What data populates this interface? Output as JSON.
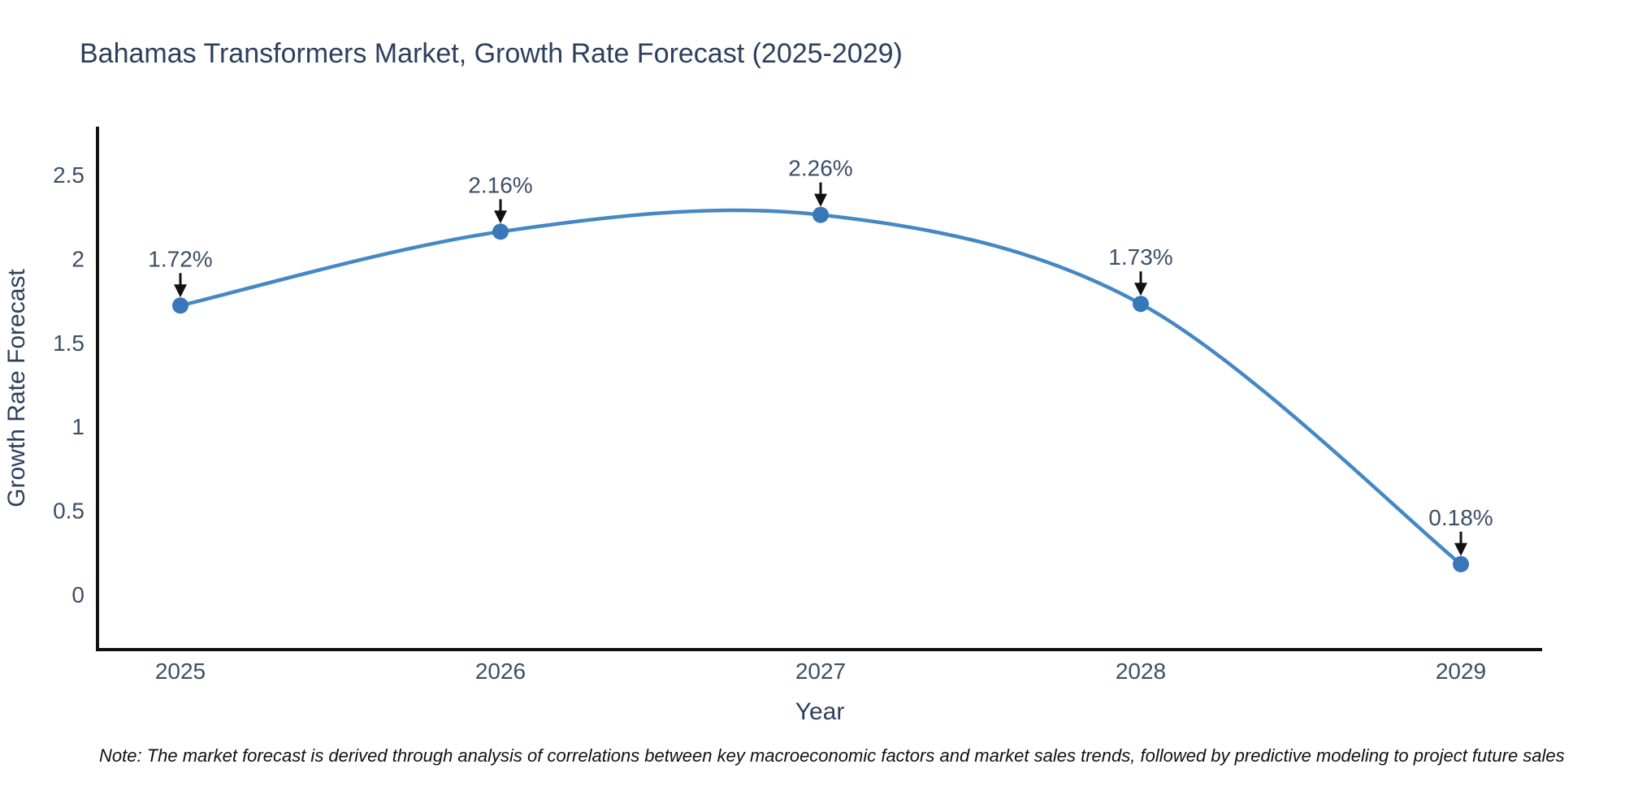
{
  "title": "Bahamas Transformers Market, Growth Rate Forecast (2025-2029)",
  "note": "Note: The market forecast is derived through analysis of correlations between key macroeconomic factors and market sales trends, followed by predictive modeling to project future sales",
  "chart_data": {
    "type": "line",
    "line_shape": "spline",
    "title": "Bahamas Transformers Market, Growth Rate Forecast (2025-2029)",
    "xlabel": "Year",
    "ylabel": "Growth Rate Forecast",
    "categories": [
      "2025",
      "2026",
      "2027",
      "2028",
      "2029"
    ],
    "values": [
      1.72,
      2.16,
      2.26,
      1.73,
      0.18
    ],
    "point_labels": [
      "1.72%",
      "2.16%",
      "2.26%",
      "1.73%",
      "0.18%"
    ],
    "yticks": [
      {
        "label": "0",
        "value": 0
      },
      {
        "label": "0.5",
        "value": 0.5
      },
      {
        "label": "1",
        "value": 1
      },
      {
        "label": "1.5",
        "value": 1.5
      },
      {
        "label": "2",
        "value": 2
      },
      {
        "label": "2.5",
        "value": 2.5
      }
    ],
    "ylim": [
      -0.33,
      2.79
    ],
    "grid": false,
    "legend": false,
    "colors": {
      "line": "#4688c4",
      "marker": "#3878ba",
      "axis": "#111111",
      "arrow": "#111111",
      "tick_text": "#3d4e66",
      "title_text": "#2e3f5c"
    }
  }
}
